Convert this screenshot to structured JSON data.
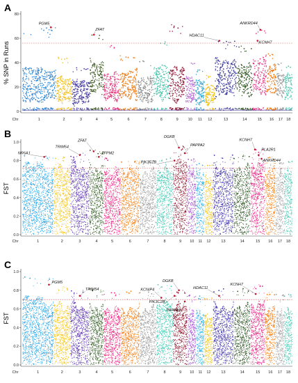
{
  "chart_data": [
    {
      "type": "scatter",
      "panel_label": "A",
      "title": "",
      "xlabel": "Chr",
      "ylabel": "% SNP in Runs",
      "ylim": [
        0,
        80
      ],
      "yticks": [
        "0",
        "20",
        "40",
        "60",
        "80"
      ],
      "threshold": 56,
      "chromosomes": [
        "1",
        "2",
        "3",
        "4",
        "5",
        "6",
        "7",
        "8",
        "9",
        "10",
        "11",
        "12",
        "13",
        "14",
        "15",
        "16",
        "17",
        "18"
      ],
      "chromosome_colors": [
        "#2f86d6",
        "#f2c01e",
        "#4b3fa0",
        "#3e5a22",
        "#e2387e",
        "#f07a12",
        "#8e8e8e",
        "#45c2a9",
        "#8c1230",
        "#b86bd6",
        "#2fa6d0",
        "#f2c41e",
        "#3a3a9c",
        "#345826",
        "#e43d8a",
        "#f27a12",
        "#9a9a9a",
        "#4ec6b0"
      ],
      "chromosome_widths": [
        17,
        8,
        9,
        7,
        8,
        9,
        8,
        8,
        8,
        5,
        5,
        5,
        11,
        8,
        7,
        5,
        4,
        4
      ],
      "profile": [
        {
          "base": 22,
          "spread": 16,
          "peak": 69
        },
        {
          "base": 18,
          "spread": 12,
          "peak": 45
        },
        {
          "base": 16,
          "spread": 12,
          "peak": 36
        },
        {
          "base": 28,
          "spread": 16,
          "peak": 63
        },
        {
          "base": 20,
          "spread": 14,
          "peak": 54
        },
        {
          "base": 22,
          "spread": 14,
          "peak": 46
        },
        {
          "base": 18,
          "spread": 12,
          "peak": 42
        },
        {
          "base": 24,
          "spread": 16,
          "peak": 58
        },
        {
          "base": 22,
          "spread": 16,
          "peak": 72
        },
        {
          "base": 18,
          "spread": 12,
          "peak": 40
        },
        {
          "base": 16,
          "spread": 12,
          "peak": 34
        },
        {
          "base": 14,
          "spread": 10,
          "peak": 30
        },
        {
          "base": 28,
          "spread": 18,
          "peak": 58
        },
        {
          "base": 26,
          "spread": 16,
          "peak": 54
        },
        {
          "base": 30,
          "spread": 18,
          "peak": 67
        },
        {
          "base": 26,
          "spread": 14,
          "peak": 48
        },
        {
          "base": 22,
          "spread": 12,
          "peak": 40
        },
        {
          "base": 20,
          "spread": 12,
          "peak": 38
        }
      ],
      "genes": [
        {
          "name": "PGM5",
          "chr": 1,
          "pos": 0.85,
          "value": 69
        },
        {
          "name": "ZFAT",
          "chr": 4,
          "pos": 0.3,
          "value": 63
        },
        {
          "name": "HDAC11",
          "chr": 13,
          "pos": 0.2,
          "value": 58
        },
        {
          "name": "ANKRD44",
          "chr": 15,
          "pos": 0.55,
          "value": 67
        },
        {
          "name": "KCNH7",
          "chr": 15,
          "pos": 0.35,
          "value": 58
        }
      ]
    },
    {
      "type": "scatter",
      "panel_label": "B",
      "title": "",
      "xlabel": "Chr",
      "ylabel": "FST",
      "ylim": [
        0,
        1.0
      ],
      "yticks": [
        "0.0",
        "0.2",
        "0.4",
        "0.6",
        "0.8",
        "1.0"
      ],
      "threshold": 0.72,
      "chromosomes": [
        "1",
        "2",
        "3",
        "4",
        "5",
        "6",
        "7",
        "8",
        "9",
        "10",
        "11",
        "12",
        "13",
        "14",
        "15",
        "16",
        "17",
        "18"
      ],
      "chromosome_colors": [
        "#1ea0e6",
        "#f5c211",
        "#5b32b4",
        "#2e5a1e",
        "#ec1c79",
        "#f57a0e",
        "#9b9b9b",
        "#3cc7ae",
        "#8b1028",
        "#a24ad2",
        "#28b0e8",
        "#f2c411",
        "#3b2fa8",
        "#2b5420",
        "#e81a7a",
        "#f57a0e",
        "#9e9e9e",
        "#45c9b3"
      ],
      "chromosome_widths": [
        15,
        8,
        9,
        7,
        8,
        9,
        8,
        8,
        7,
        4,
        4,
        4,
        10,
        8,
        7,
        5,
        4,
        4
      ],
      "profile": [
        {
          "base": 0.4,
          "spread": 0.34,
          "peak": 0.86
        },
        {
          "base": 0.4,
          "spread": 0.32,
          "peak": 0.84
        },
        {
          "base": 0.42,
          "spread": 0.34,
          "peak": 0.88
        },
        {
          "base": 0.42,
          "spread": 0.32,
          "peak": 0.92
        },
        {
          "base": 0.4,
          "spread": 0.32,
          "peak": 0.84
        },
        {
          "base": 0.4,
          "spread": 0.32,
          "peak": 0.82
        },
        {
          "base": 0.38,
          "spread": 0.3,
          "peak": 0.8
        },
        {
          "base": 0.4,
          "spread": 0.3,
          "peak": 0.84
        },
        {
          "base": 0.46,
          "spread": 0.34,
          "peak": 0.96
        },
        {
          "base": 0.4,
          "spread": 0.3,
          "peak": 0.82
        },
        {
          "base": 0.38,
          "spread": 0.3,
          "peak": 0.78
        },
        {
          "base": 0.36,
          "spread": 0.28,
          "peak": 0.76
        },
        {
          "base": 0.42,
          "spread": 0.32,
          "peak": 0.86
        },
        {
          "base": 0.42,
          "spread": 0.32,
          "peak": 0.86
        },
        {
          "base": 0.44,
          "spread": 0.34,
          "peak": 0.92
        },
        {
          "base": 0.4,
          "spread": 0.32,
          "peak": 0.84
        },
        {
          "base": 0.38,
          "spread": 0.3,
          "peak": 0.8
        },
        {
          "base": 0.38,
          "spread": 0.3,
          "peak": 0.8
        }
      ],
      "genes": [
        {
          "name": "NR6A1",
          "chr": 1,
          "pos": 0.7,
          "value": 0.84
        },
        {
          "name": "TRIM54",
          "chr": 3,
          "pos": 0.5,
          "value": 0.86
        },
        {
          "name": "ZFAT",
          "chr": 4,
          "pos": 0.3,
          "value": 0.9
        },
        {
          "name": "ZFPM2",
          "chr": 4,
          "pos": 0.65,
          "value": 0.84
        },
        {
          "name": "PIK3C2B",
          "chr": 9,
          "pos": 0.1,
          "value": 0.8
        },
        {
          "name": "DGKB",
          "chr": 9,
          "pos": 0.4,
          "value": 0.94
        },
        {
          "name": "PAPPA2",
          "chr": 9,
          "pos": 0.8,
          "value": 0.88
        },
        {
          "name": "KCNH7",
          "chr": 15,
          "pos": 0.3,
          "value": 0.92
        },
        {
          "name": "PLA2R1",
          "chr": 15,
          "pos": 0.55,
          "value": 0.86
        },
        {
          "name": "ANKRD44",
          "chr": 15,
          "pos": 0.75,
          "value": 0.82
        }
      ]
    },
    {
      "type": "scatter",
      "panel_label": "C",
      "title": "",
      "xlabel": "Chr",
      "ylabel": "FST",
      "ylim": [
        0,
        1.0
      ],
      "yticks": [
        "0.0",
        "0.2",
        "0.4",
        "0.6",
        "0.8",
        "1.0"
      ],
      "threshold": 0.7,
      "chromosomes": [
        "1",
        "2",
        "3",
        "4",
        "5",
        "6",
        "7",
        "8",
        "9",
        "10",
        "11",
        "12",
        "13",
        "14",
        "15",
        "16",
        "17",
        "18"
      ],
      "chromosome_colors": [
        "#1ea0e6",
        "#f5c211",
        "#5b32b4",
        "#2e5a1e",
        "#ec1c79",
        "#f57a0e",
        "#9b9b9b",
        "#3cc7ae",
        "#8b1028",
        "#a24ad2",
        "#28b0e8",
        "#f2c411",
        "#3b2fa8",
        "#2b5420",
        "#e81a7a",
        "#f57a0e",
        "#9e9e9e",
        "#45c9b3"
      ],
      "chromosome_widths": [
        15,
        8,
        9,
        7,
        8,
        9,
        8,
        8,
        7,
        4,
        4,
        4,
        10,
        8,
        7,
        5,
        4,
        4
      ],
      "profile": [
        {
          "base": 0.36,
          "spread": 0.34,
          "peak": 0.96
        },
        {
          "base": 0.34,
          "spread": 0.3,
          "peak": 0.84
        },
        {
          "base": 0.34,
          "spread": 0.3,
          "peak": 0.8
        },
        {
          "base": 0.34,
          "spread": 0.3,
          "peak": 0.82
        },
        {
          "base": 0.33,
          "spread": 0.28,
          "peak": 0.78
        },
        {
          "base": 0.33,
          "spread": 0.28,
          "peak": 0.8
        },
        {
          "base": 0.32,
          "spread": 0.28,
          "peak": 0.78
        },
        {
          "base": 0.36,
          "spread": 0.3,
          "peak": 0.86
        },
        {
          "base": 0.34,
          "spread": 0.3,
          "peak": 0.8
        },
        {
          "base": 0.32,
          "spread": 0.26,
          "peak": 0.76
        },
        {
          "base": 0.3,
          "spread": 0.26,
          "peak": 0.74
        },
        {
          "base": 0.3,
          "spread": 0.24,
          "peak": 0.72
        },
        {
          "base": 0.34,
          "spread": 0.3,
          "peak": 0.82
        },
        {
          "base": 0.34,
          "spread": 0.3,
          "peak": 0.82
        },
        {
          "base": 0.36,
          "spread": 0.3,
          "peak": 0.86
        },
        {
          "base": 0.33,
          "spread": 0.28,
          "peak": 0.78
        },
        {
          "base": 0.32,
          "spread": 0.26,
          "peak": 0.76
        },
        {
          "base": 0.32,
          "spread": 0.26,
          "peak": 0.76
        }
      ],
      "genes": [
        {
          "name": "PGM5",
          "chr": 1,
          "pos": 0.85,
          "value": 0.86
        },
        {
          "name": "TRIM54",
          "chr": 3,
          "pos": 0.5,
          "value": 0.74
        },
        {
          "name": "KCNIP4",
          "chr": 8,
          "pos": 0.3,
          "value": 0.72
        },
        {
          "name": "PIK3C2B",
          "chr": 9,
          "pos": 0.1,
          "value": 0.74
        },
        {
          "name": "DGKB",
          "chr": 9,
          "pos": 0.4,
          "value": 0.8
        },
        {
          "name": "PAPPA2",
          "chr": 9,
          "pos": 0.8,
          "value": 0.68
        },
        {
          "name": "HDAC11",
          "chr": 13,
          "pos": 0.3,
          "value": 0.74
        },
        {
          "name": "KCNH7",
          "chr": 15,
          "pos": 0.35,
          "value": 0.76
        }
      ]
    }
  ]
}
